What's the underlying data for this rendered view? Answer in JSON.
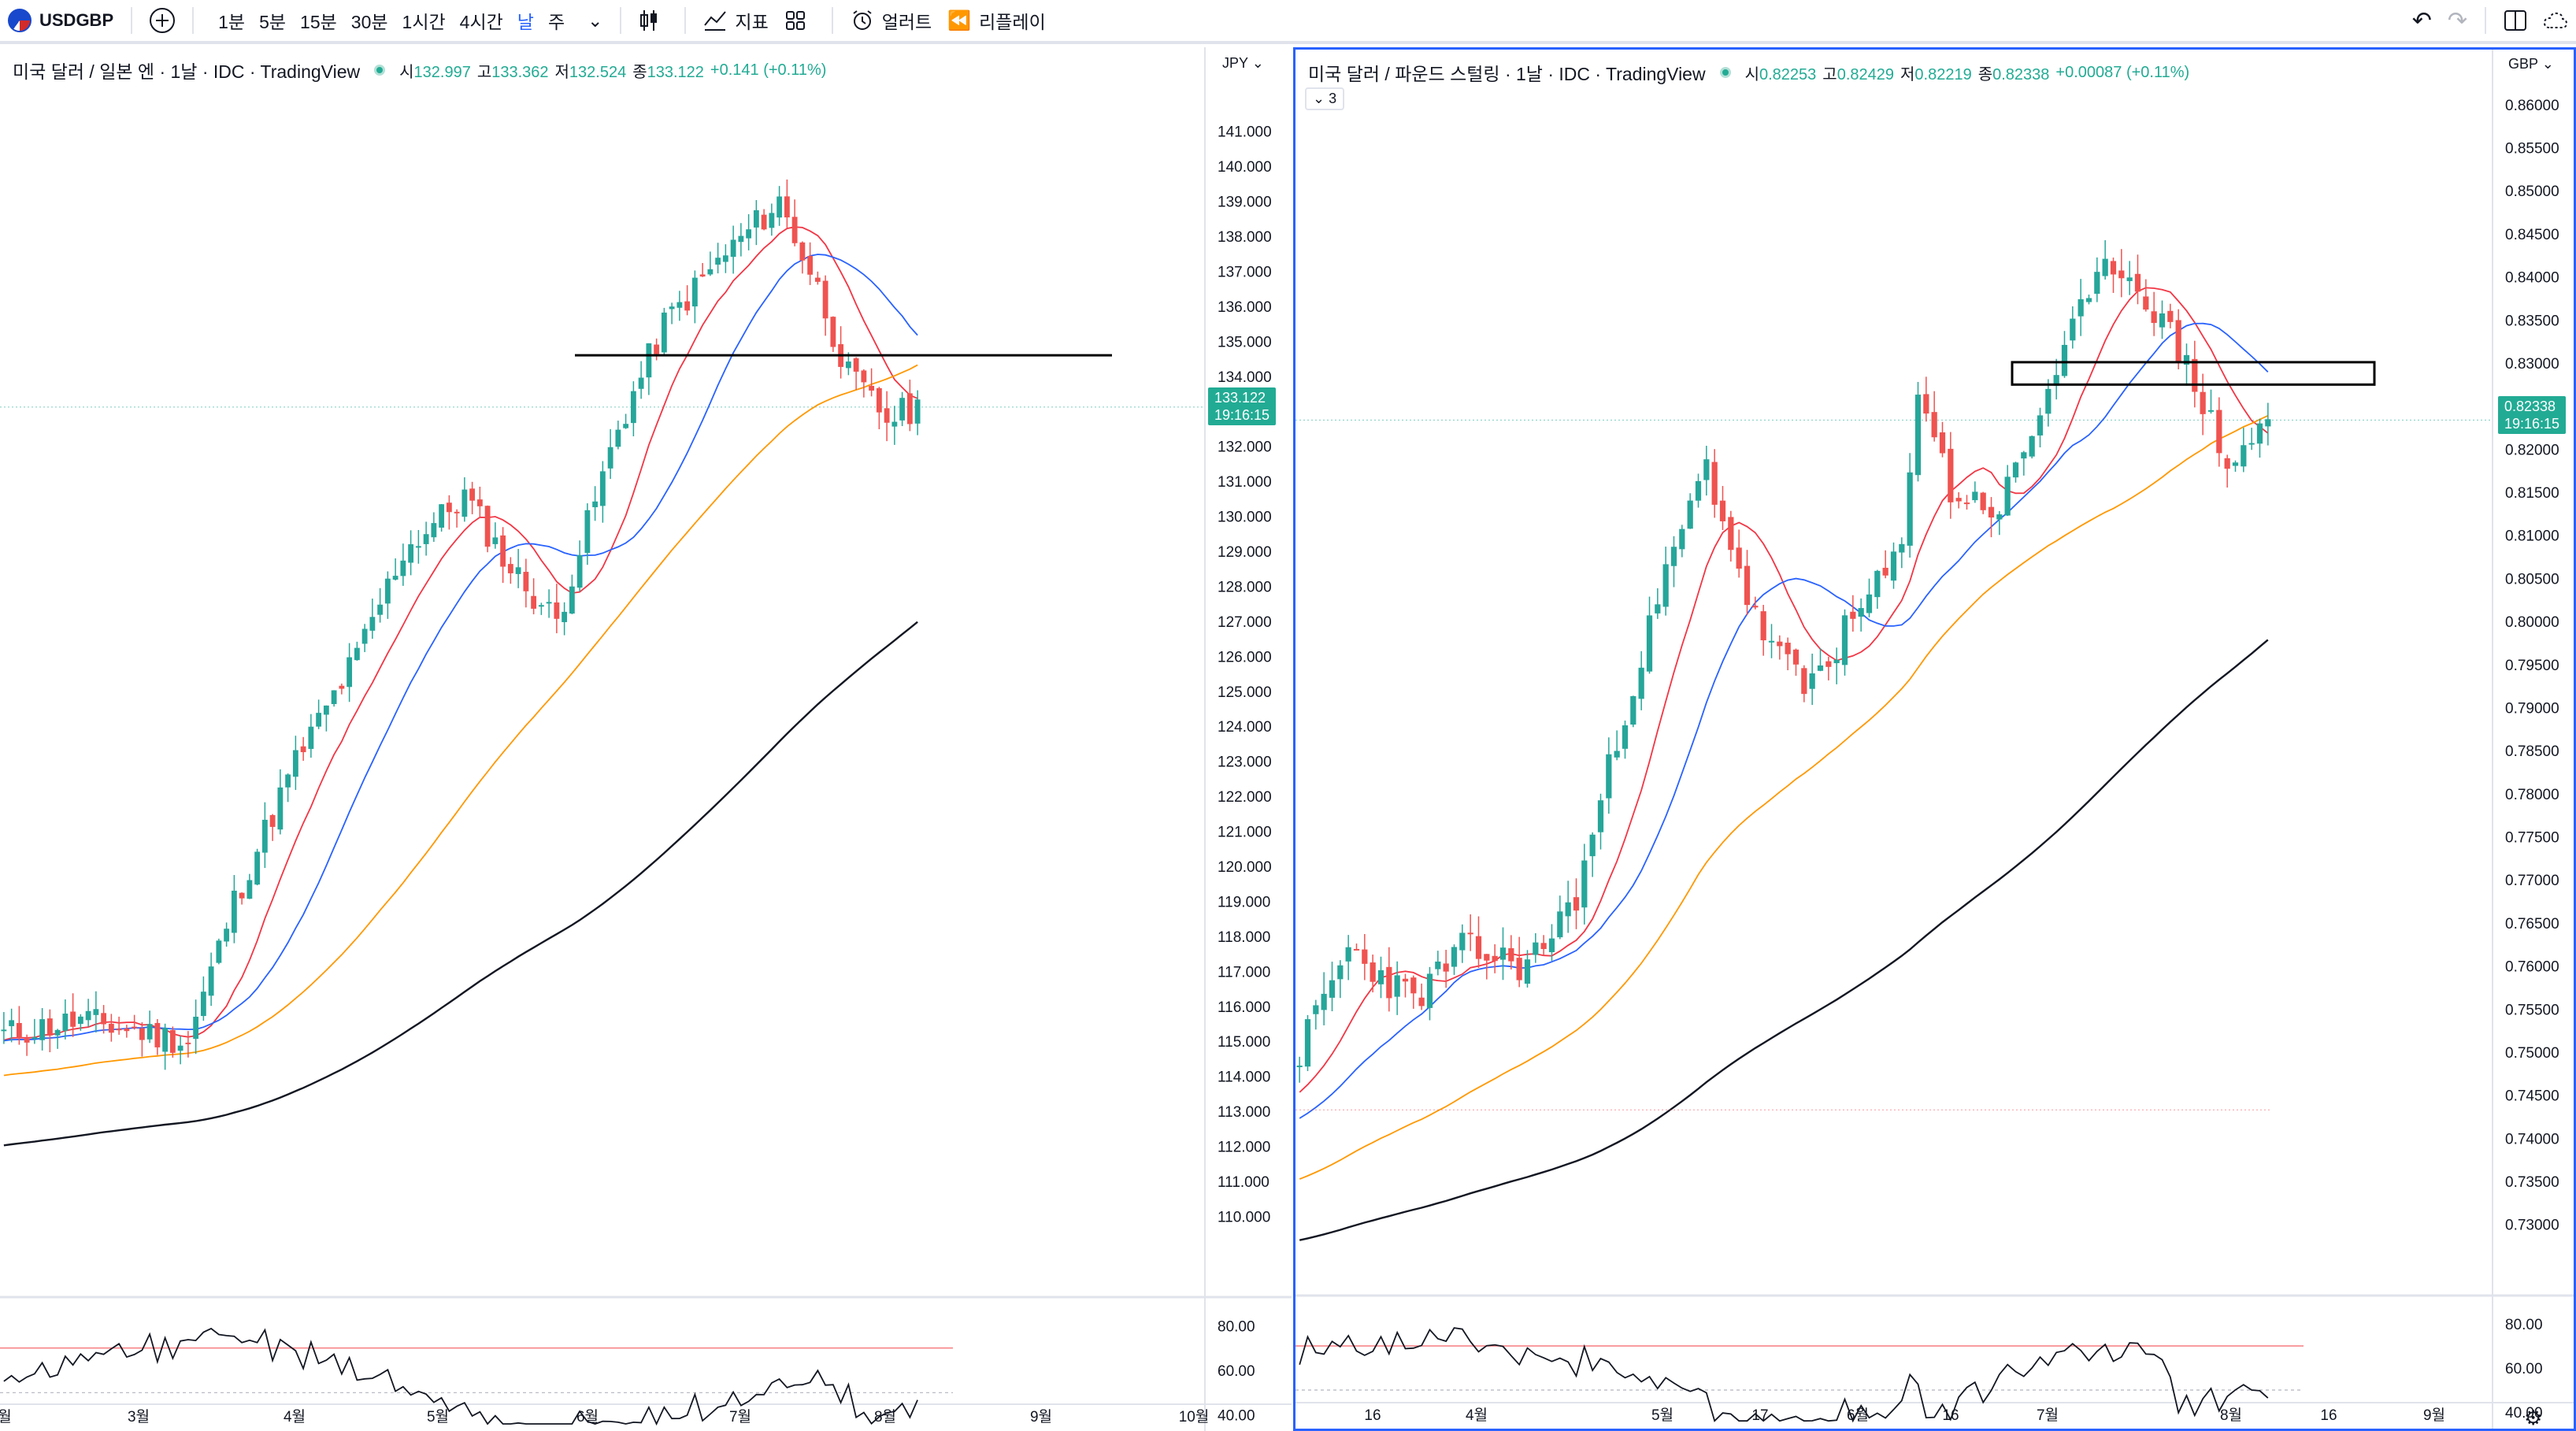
{
  "toolbar": {
    "symbol": "USDGBP",
    "intervals": [
      "1분",
      "5분",
      "15분",
      "30분",
      "1시간",
      "4시간",
      "날",
      "주"
    ],
    "active_interval": "날",
    "indicators_label": "지표",
    "alert_label": "얼러트",
    "replay_label": "리플레이"
  },
  "left": {
    "title": "미국 달러 / 일본 엔 · 1날 · IDC · TradingView",
    "open_label": "시",
    "open": "132.997",
    "high_label": "고",
    "high": "133.362",
    "low_label": "저",
    "low": "132.524",
    "close_label": "종",
    "close": "133.122",
    "change": "+0.141 (+0.11%)",
    "currency": "JPY",
    "price_tag": "133.122",
    "countdown": "19:16:15",
    "price_axis": [
      "141.000",
      "140.000",
      "139.000",
      "138.000",
      "137.000",
      "136.000",
      "135.000",
      "134.000",
      "133.000",
      "132.000",
      "131.000",
      "130.000",
      "129.000",
      "128.000",
      "127.000",
      "126.000",
      "125.000",
      "124.000",
      "123.000",
      "122.000",
      "121.000",
      "120.000",
      "119.000",
      "118.000",
      "117.000",
      "116.000",
      "115.000",
      "114.000",
      "113.000",
      "112.000",
      "111.000",
      "110.000"
    ],
    "rsi_axis": [
      "80.00",
      "60.00",
      "40.00"
    ],
    "time_axis": [
      "월",
      "3월",
      "4월",
      "5월",
      "6월",
      "7월",
      "8월",
      "9월",
      "10월"
    ]
  },
  "right": {
    "title": "미국 달러 / 파운드 스털링 · 1날 · IDC · TradingView",
    "open_label": "시",
    "open": "0.82253",
    "high_label": "고",
    "high": "0.82429",
    "low_label": "저",
    "low": "0.82219",
    "close_label": "종",
    "close": "0.82338",
    "change": "+0.00087 (+0.11%)",
    "collapsed_count": "3",
    "currency": "GBP",
    "price_tag": "0.82338",
    "countdown": "19:16:15",
    "price_axis": [
      "0.86000",
      "0.85500",
      "0.85000",
      "0.84500",
      "0.84000",
      "0.83500",
      "0.83000",
      "0.82500",
      "0.82000",
      "0.81500",
      "0.81000",
      "0.80500",
      "0.80000",
      "0.79500",
      "0.79000",
      "0.78500",
      "0.78000",
      "0.77500",
      "0.77000",
      "0.76500",
      "0.76000",
      "0.75500",
      "0.75000",
      "0.74500",
      "0.74000",
      "0.73500",
      "0.73000"
    ],
    "rsi_axis": [
      "80.00",
      "60.00",
      "40.00"
    ],
    "time_axis": [
      "16",
      "4월",
      "5월",
      "17",
      "6월",
      "16",
      "7월",
      "8월",
      "16",
      "9월"
    ]
  },
  "colors": {
    "up": "#26a69a",
    "down": "#ef5350",
    "ma_short": "#f23645",
    "ma_mid": "#2962ff",
    "ma_long": "#ff9800",
    "ma_200": "#131722",
    "rsi": "#131722",
    "rsi_band": "#f77c80"
  }
}
